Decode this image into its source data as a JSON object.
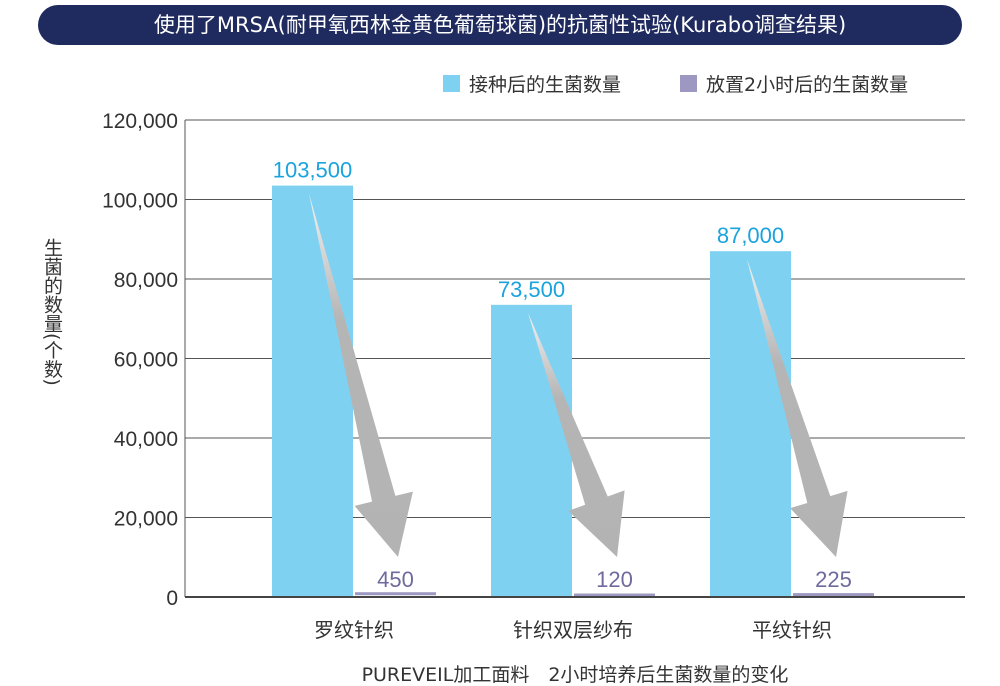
{
  "chart_data": {
    "type": "bar",
    "title": "使用了MRSA(耐甲氧西林金黄色葡萄球菌)的抗菌性试验(Kurabo调查结果)",
    "xlabel": "PUREVEIL加工面料　2小时培养后生菌数量的变化",
    "ylabel": "生菌的数量(个数)",
    "ylim": [
      0,
      120000
    ],
    "yticks": [
      "0",
      "20,000",
      "40,000",
      "60,000",
      "80,000",
      "100,000",
      "120,000"
    ],
    "grid": true,
    "legend_position": "top-right",
    "categories": [
      "罗纹针织",
      "针织双层纱布",
      "平纹针织"
    ],
    "series": [
      {
        "name": "接种后的生菌数量",
        "values": [
          103500,
          73500,
          87000
        ],
        "labels": [
          "103,500",
          "73,500",
          "87,000"
        ],
        "color": "#7fd1f1",
        "label_color": "#1aa3dd"
      },
      {
        "name": "放置2小时后的生菌数量",
        "values": [
          450,
          120,
          225
        ],
        "labels": [
          "450",
          "120",
          "225"
        ],
        "color": "#9d98c2",
        "label_color": "#6f6a9e"
      }
    ],
    "annotations": "grey arrows from each inoculation bar down to the 2-hour bar"
  }
}
